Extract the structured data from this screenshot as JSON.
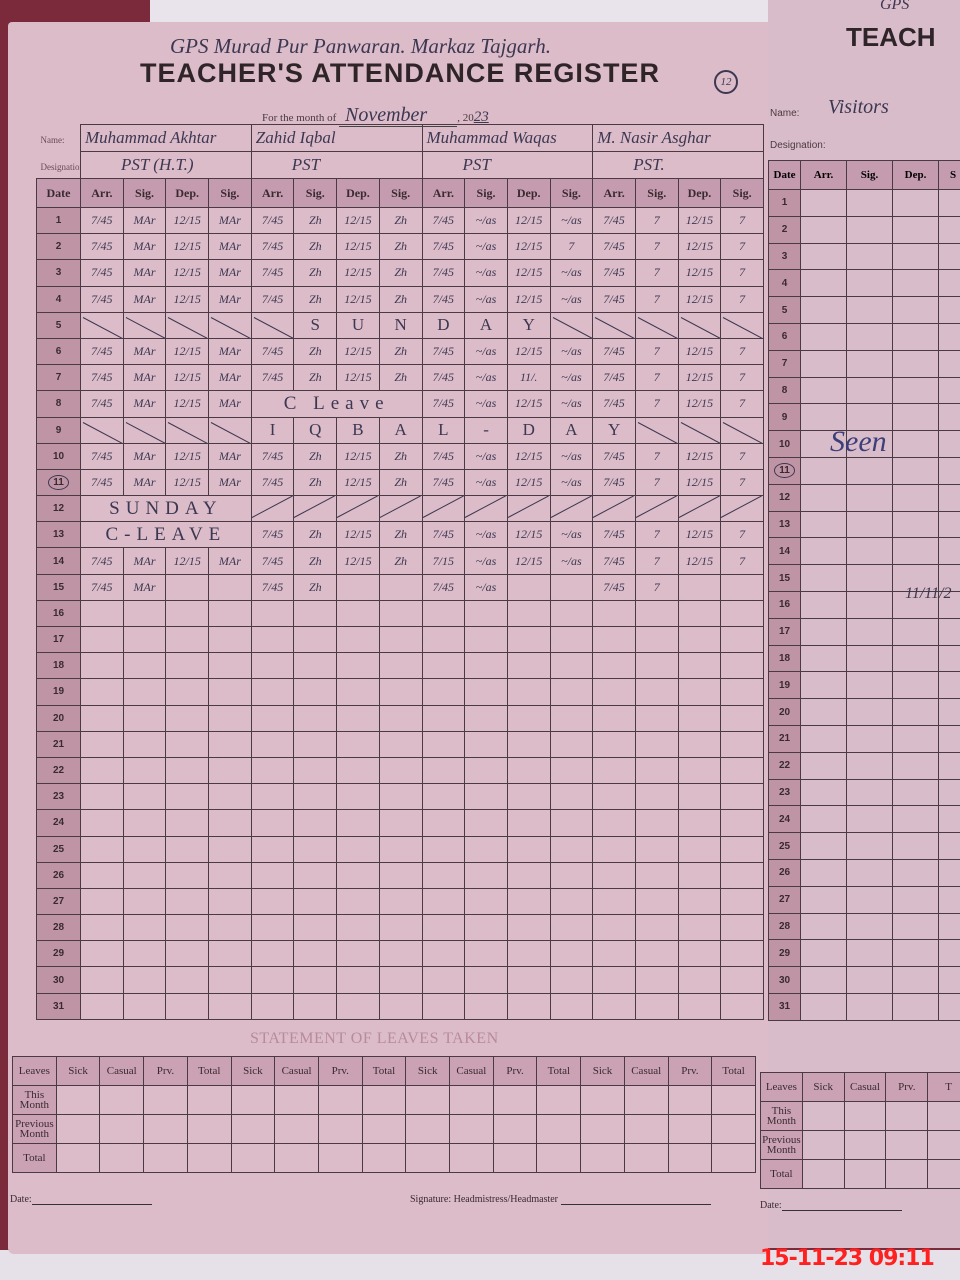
{
  "register": {
    "school": "GPS Murad Pur Panwaran. Markaz Tajgarh.",
    "title": "TEACHER'S ATTENDANCE REGISTER",
    "page_number": "12",
    "month_label": "For the month of",
    "month": "November",
    "year_prefix": ", 20",
    "year": "23",
    "name_label": "Name:",
    "designation_label": "Designation:",
    "teachers": [
      {
        "name": "Muhammad Akhtar",
        "designation": "PST (H.T.)"
      },
      {
        "name": "Zahid Iqbal",
        "designation": "PST"
      },
      {
        "name": "Muhammad Waqas",
        "designation": "PST"
      },
      {
        "name": "M. Nasir Asghar",
        "designation": "PST."
      }
    ],
    "column_headers": [
      "Date",
      "Arr.",
      "Sig.",
      "Dep.",
      "Sig."
    ],
    "circled_date": 11,
    "rows": [
      {
        "date": 1,
        "groups": [
          [
            "7/45",
            "MAr",
            "12/15",
            "MAr"
          ],
          [
            "7/45",
            "Zh",
            "12/15",
            "Zh"
          ],
          [
            "7/45",
            "~/as",
            "12/15",
            "~/as"
          ],
          [
            "7/45",
            "7",
            "12/15",
            "7"
          ]
        ]
      },
      {
        "date": 2,
        "groups": [
          [
            "7/45",
            "MAr",
            "12/15",
            "MAr"
          ],
          [
            "7/45",
            "Zh",
            "12/15",
            "Zh"
          ],
          [
            "7/45",
            "~/as",
            "12/15",
            "7"
          ],
          [
            "7/45",
            "7",
            "12/15",
            "7"
          ]
        ]
      },
      {
        "date": 3,
        "groups": [
          [
            "7/45",
            "MAr",
            "12/15",
            "MAr"
          ],
          [
            "7/45",
            "Zh",
            "12/15",
            "Zh"
          ],
          [
            "7/45",
            "~/as",
            "12/15",
            "~/as"
          ],
          [
            "7/45",
            "7",
            "12/15",
            "7"
          ]
        ]
      },
      {
        "date": 4,
        "groups": [
          [
            "7/45",
            "MAr",
            "12/15",
            "MAr"
          ],
          [
            "7/45",
            "Zh",
            "12/15",
            "Zh"
          ],
          [
            "7/45",
            "~/as",
            "12/15",
            "~/as"
          ],
          [
            "7/45",
            "7",
            "12/15",
            "7"
          ]
        ]
      },
      {
        "date": 5,
        "groups": [
          [
            null,
            null,
            null,
            null
          ],
          [
            null,
            "S",
            "U",
            "N"
          ],
          [
            "D",
            "A",
            "Y",
            null
          ],
          [
            null,
            null,
            null,
            null
          ]
        ]
      },
      {
        "date": 6,
        "groups": [
          [
            "7/45",
            "MAr",
            "12/15",
            "MAr"
          ],
          [
            "7/45",
            "Zh",
            "12/15",
            "Zh"
          ],
          [
            "7/45",
            "~/as",
            "12/15",
            "~/as"
          ],
          [
            "7/45",
            "7",
            "12/15",
            "7"
          ]
        ]
      },
      {
        "date": 7,
        "groups": [
          [
            "7/45",
            "MAr",
            "12/15",
            "MAr"
          ],
          [
            "7/45",
            "Zh",
            "12/15",
            "Zh"
          ],
          [
            "7/45",
            "~/as",
            "11/.",
            "~/as"
          ],
          [
            "7/45",
            "7",
            "12/15",
            "7"
          ]
        ]
      },
      {
        "date": 8,
        "groups": [
          [
            "7/45",
            "MAr",
            "12/15",
            "MAr"
          ],
          "C Leave",
          [
            "7/45",
            "~/as",
            "12/15",
            "~/as"
          ],
          [
            "7/45",
            "7",
            "12/15",
            "7"
          ]
        ]
      },
      {
        "date": 9,
        "groups": [
          [
            null,
            null,
            null,
            null
          ],
          [
            "I",
            "Q",
            "B",
            "A"
          ],
          [
            "L",
            "-",
            "D",
            "A"
          ],
          [
            "Y",
            null,
            null,
            null
          ]
        ]
      },
      {
        "date": 10,
        "groups": [
          [
            "7/45",
            "MAr",
            "12/15",
            "MAr"
          ],
          [
            "7/45",
            "Zh",
            "12/15",
            "Zh"
          ],
          [
            "7/45",
            "~/as",
            "12/15",
            "~/as"
          ],
          [
            "7/45",
            "7",
            "12/15",
            "7"
          ]
        ]
      },
      {
        "date": 11,
        "groups": [
          [
            "7/45",
            "MAr",
            "12/15",
            "MAr"
          ],
          [
            "7/45",
            "Zh",
            "12/15",
            "Zh"
          ],
          [
            "7/45",
            "~/as",
            "12/15",
            "~/as"
          ],
          [
            "7/45",
            "7",
            "12/15",
            "7"
          ]
        ]
      },
      {
        "date": 12,
        "groups": [
          "SUNDAY",
          [
            false,
            false,
            false,
            false
          ],
          [
            false,
            false,
            false,
            false
          ],
          [
            false,
            false,
            false,
            false
          ]
        ]
      },
      {
        "date": 13,
        "groups": [
          "C-LEAVE",
          [
            "7/45",
            "Zh",
            "12/15",
            "Zh"
          ],
          [
            "7/45",
            "~/as",
            "12/15",
            "~/as"
          ],
          [
            "7/45",
            "7",
            "12/15",
            "7"
          ]
        ]
      },
      {
        "date": 14,
        "groups": [
          [
            "7/45",
            "MAr",
            "12/15",
            "MAr"
          ],
          [
            "7/45",
            "Zh",
            "12/15",
            "Zh"
          ],
          [
            "7/15",
            "~/as",
            "12/15",
            "~/as"
          ],
          [
            "7/45",
            "7",
            "12/15",
            "7"
          ]
        ]
      },
      {
        "date": 15,
        "groups": [
          [
            "7/45",
            "MAr",
            "",
            ""
          ],
          [
            "7/45",
            "Zh",
            "",
            ""
          ],
          [
            "7/45",
            "~/as",
            "",
            ""
          ],
          [
            "7/45",
            "7",
            "",
            ""
          ]
        ]
      }
    ],
    "total_dates": 31
  },
  "leaves": {
    "title": "STATEMENT OF LEAVES TAKEN",
    "row_header": "Leaves",
    "columns": [
      "Sick",
      "Casual",
      "Prv.",
      "Total"
    ],
    "rows": [
      "This Month",
      "Previous Month",
      "Total"
    ]
  },
  "footer": {
    "date_label": "Date:",
    "signature_label": "Signature: Headmistress/Headmaster"
  },
  "right_page": {
    "title_partial": "TEACH",
    "school_partial": "GPS",
    "name_label": "Name:",
    "name": "Visitors",
    "designation_label": "Designation:",
    "column_headers": [
      "Date",
      "Arr.",
      "Sig.",
      "Dep.",
      "S"
    ],
    "visitor_note": "11/11/2",
    "leaves_columns": [
      "Sick",
      "Casual",
      "Prv.",
      "T"
    ],
    "date_label": "Date:"
  },
  "timestamp": "15-11-23  09:11",
  "colors": {
    "page": "#dbbcc8",
    "date_column": "#bf95a6",
    "ink": "#3c3752",
    "timestamp": "#ff2020"
  }
}
